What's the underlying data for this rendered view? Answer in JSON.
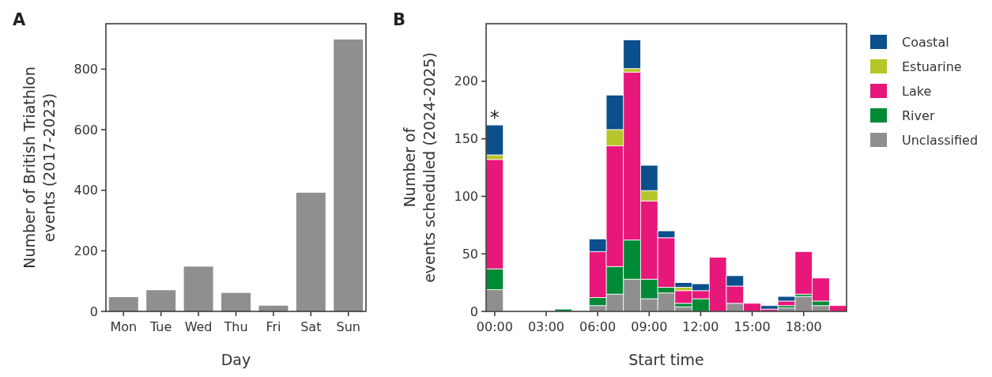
{
  "chart_data": [
    {
      "type": "bar",
      "title": "A",
      "categories": [
        "Mon",
        "Tue",
        "Wed",
        "Thu",
        "Fri",
        "Sat",
        "Sun"
      ],
      "values": [
        47,
        70,
        148,
        61,
        19,
        392,
        898
      ],
      "color": "#8f8f8f",
      "xlabel": "Day",
      "ylabel": "Number of British Triathlon\nevents (2017-2023)",
      "ylim": [
        0,
        950
      ],
      "yticks": [
        0,
        200,
        400,
        600,
        800
      ],
      "grid": false,
      "legend": false
    },
    {
      "type": "bar",
      "title": "B",
      "stacked": true,
      "x": [
        0,
        4,
        6,
        7,
        8,
        9,
        10,
        11,
        12,
        13,
        14,
        15,
        16,
        17,
        18,
        19,
        20
      ],
      "xlim": [
        -0.5,
        20.5
      ],
      "xticks": [
        {
          "value": 0,
          "label": "00:00"
        },
        {
          "value": 3,
          "label": "03:00"
        },
        {
          "value": 6,
          "label": "06:00"
        },
        {
          "value": 9,
          "label": "09:00"
        },
        {
          "value": 12,
          "label": "12:00"
        },
        {
          "value": 15,
          "label": "15:00"
        },
        {
          "value": 18,
          "label": "18:00"
        }
      ],
      "ylim": [
        0,
        250
      ],
      "yticks": [
        0,
        50,
        100,
        150,
        200
      ],
      "xlabel": "Start time",
      "ylabel": "Number of\nevents scheduled (2024-2025)",
      "grid": false,
      "legend": "right",
      "annotations": [
        {
          "text": "*",
          "x": 0,
          "y": 162
        }
      ],
      "series": [
        {
          "name": "Unclassified",
          "color": "#8f8f8f",
          "values": [
            19,
            0,
            5,
            15,
            28,
            11,
            16,
            4,
            null,
            0,
            7,
            0,
            0,
            3,
            13,
            5,
            0
          ]
        },
        {
          "name": "River",
          "color": "#008a36",
          "values": [
            18,
            2,
            7,
            24,
            34,
            17,
            5,
            3,
            11,
            null,
            0,
            0,
            null,
            2,
            2,
            4,
            0
          ]
        },
        {
          "name": "Lake",
          "color": "#e8177a",
          "values": [
            95,
            0,
            40,
            105,
            146,
            68,
            43,
            11,
            7,
            47,
            15,
            7,
            2,
            4,
            37,
            20,
            5
          ]
        },
        {
          "name": "Estuarine",
          "color": "#b5c62a",
          "values": [
            4,
            0,
            0,
            14,
            3,
            9,
            0,
            3,
            0,
            0,
            0,
            0,
            0,
            0,
            0,
            0,
            0
          ]
        },
        {
          "name": "Coastal",
          "color": "#0b4f8c",
          "values": [
            26,
            0,
            11,
            30,
            25,
            22,
            6,
            4,
            6,
            0,
            9,
            null,
            3,
            4,
            0,
            0,
            0
          ]
        }
      ]
    }
  ]
}
